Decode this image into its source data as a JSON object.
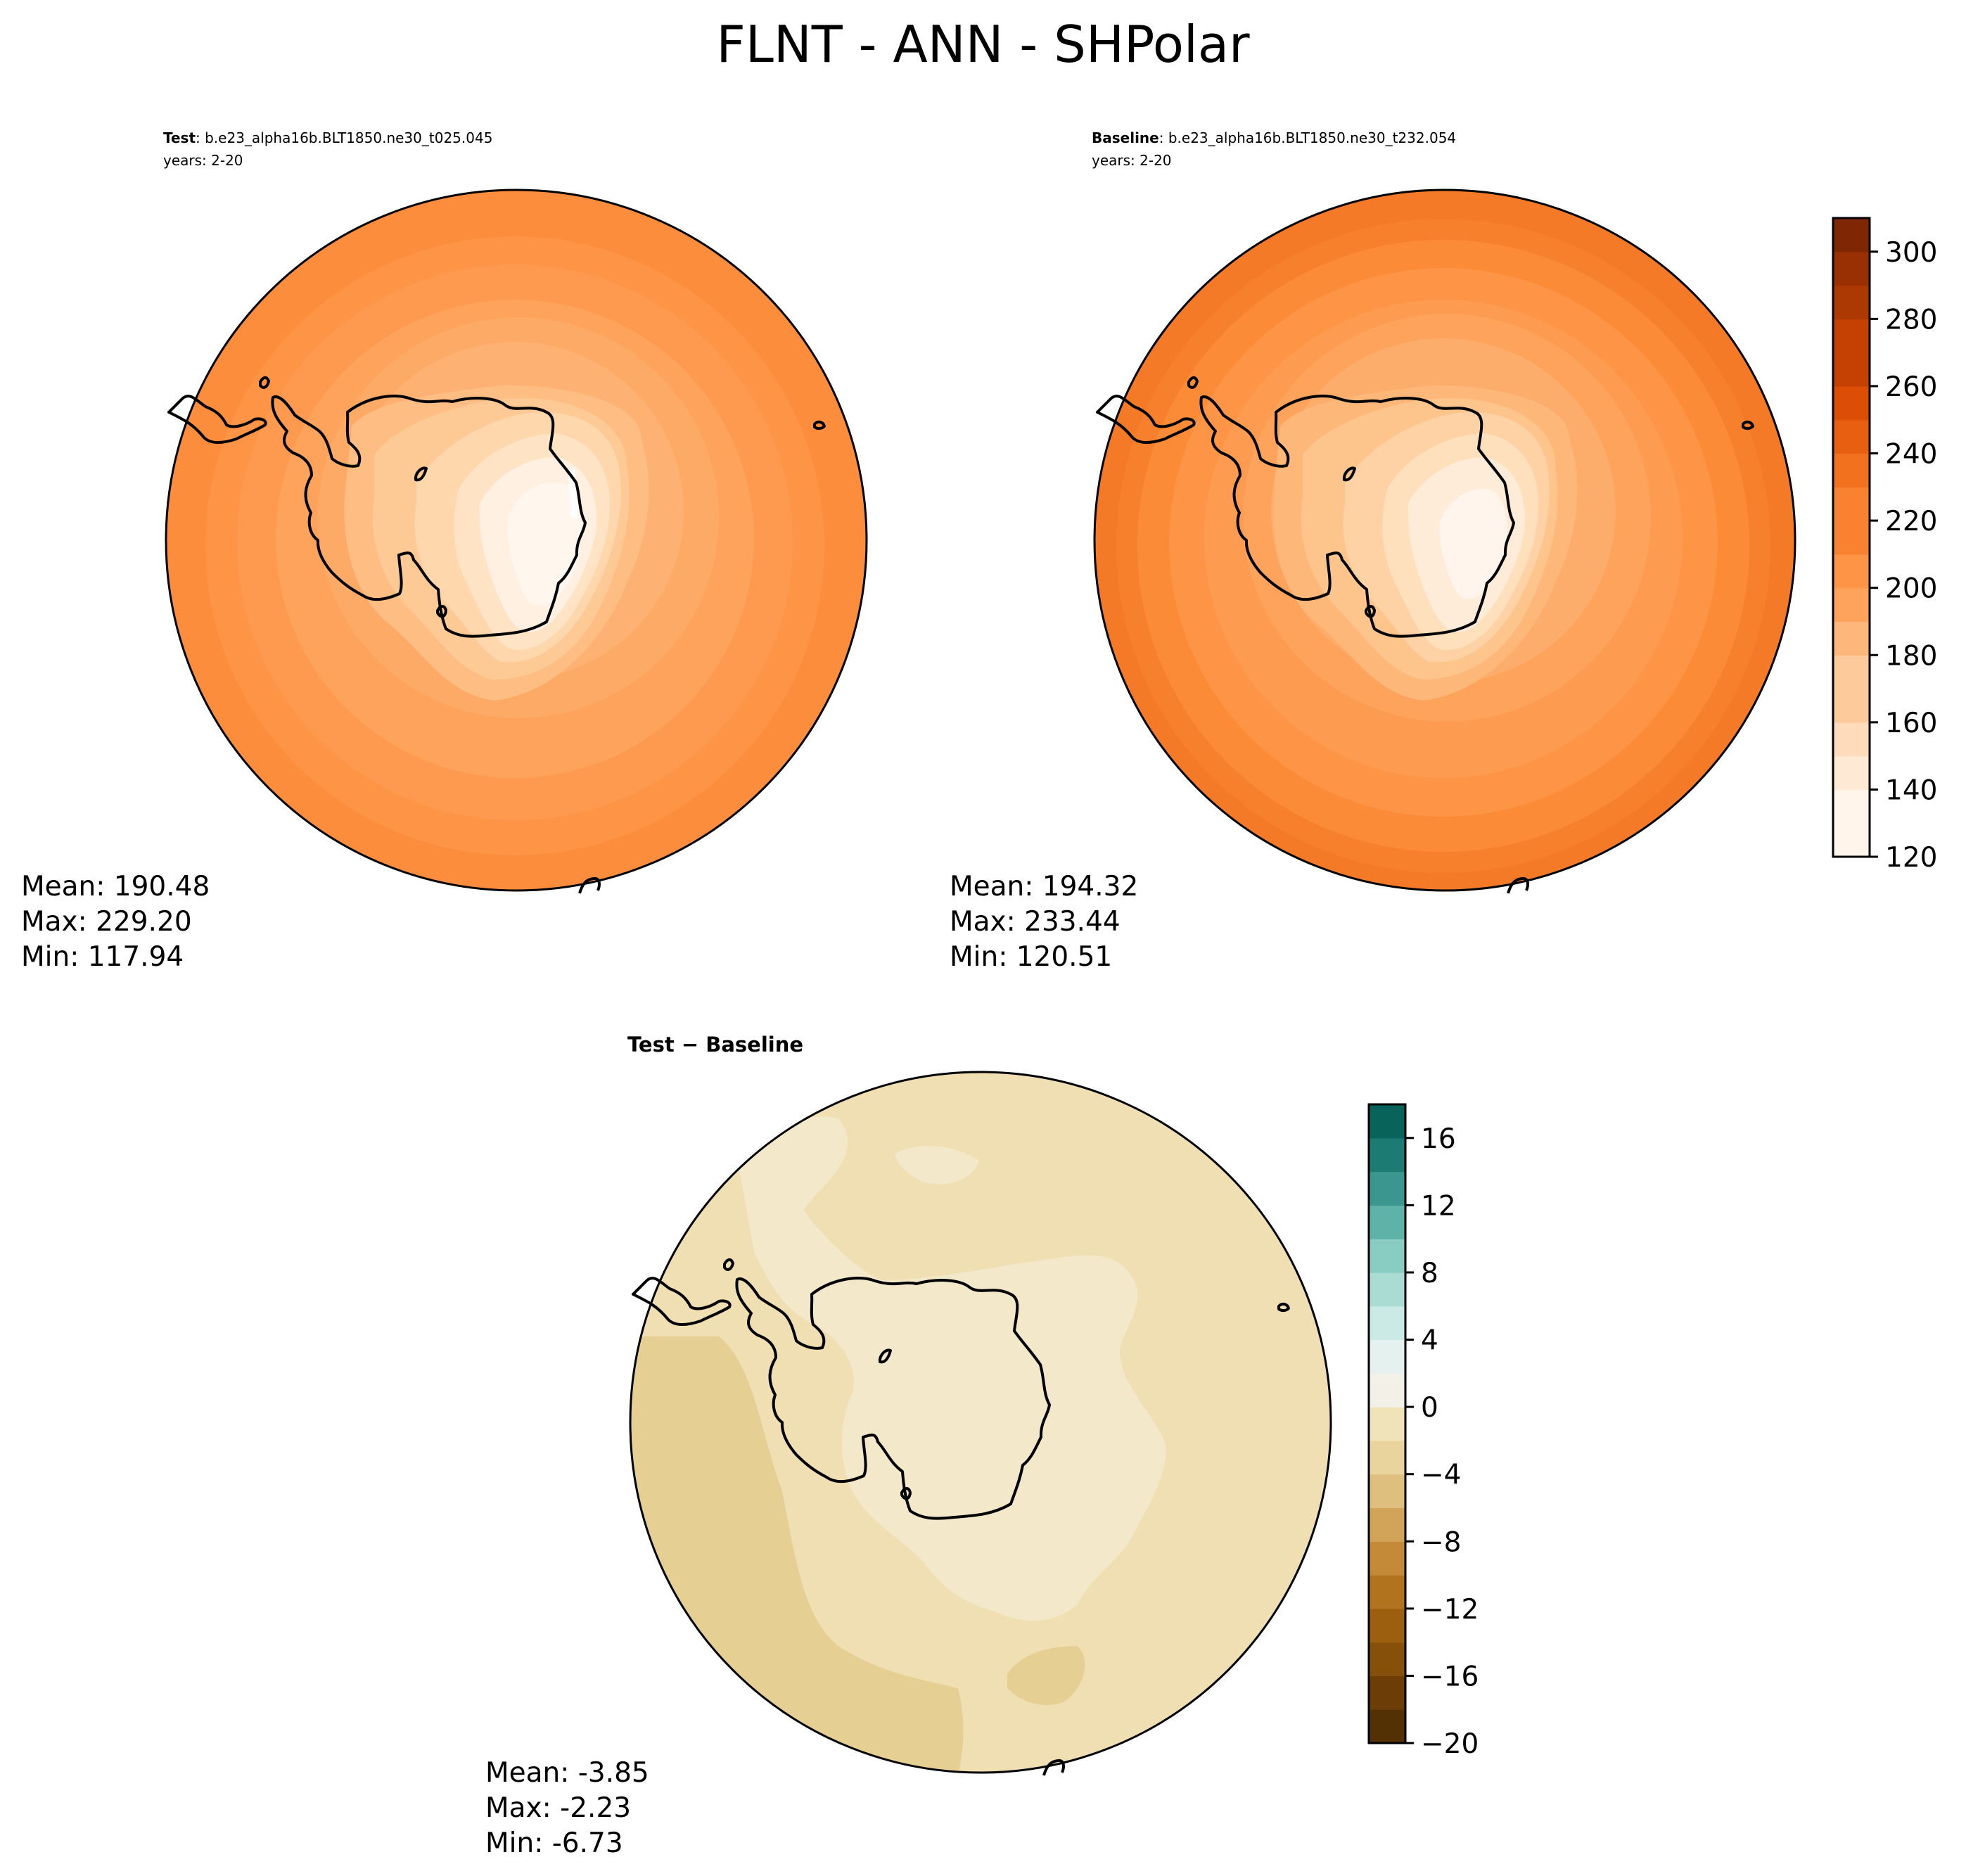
{
  "figure": {
    "title": "FLNT - ANN - SHPolar"
  },
  "panels": {
    "test": {
      "label": "Test",
      "case": ": b.e23_alpha16b.BLT1850.ne30_t025.045",
      "years": "years: 2-20",
      "mean": "Mean: 190.48",
      "max": "Max: 229.20",
      "min": "Min: 117.94"
    },
    "baseline": {
      "label": "Baseline",
      "case": ": b.e23_alpha16b.BLT1850.ne30_t232.054",
      "years": "years: 2-20",
      "mean": "Mean: 194.32",
      "max": "Max: 233.44",
      "min": "Min: 120.51"
    },
    "diff": {
      "label": "Test − Baseline",
      "mean": "Mean: -3.85",
      "max": "Max: -2.23",
      "min": "Min: -6.73"
    }
  },
  "colorbars": {
    "main": {
      "cmap": "Oranges",
      "range": [
        120,
        310
      ],
      "step": 10,
      "ticks": [
        "120",
        "140",
        "160",
        "180",
        "200",
        "220",
        "240",
        "260",
        "280",
        "300"
      ],
      "tick_values": [
        120,
        140,
        160,
        180,
        200,
        220,
        240,
        260,
        280,
        300
      ],
      "colors": [
        "#fff5eb",
        "#fee9d4",
        "#fedcbb",
        "#fdcb9b",
        "#fdb77a",
        "#fda35c",
        "#fd9446",
        "#f98230",
        "#f1711f",
        "#e85f12",
        "#dc4d06",
        "#c44103",
        "#ac3803",
        "#993003",
        "#7f2704"
      ]
    },
    "diff": {
      "cmap": "BrBG",
      "range": [
        -20,
        18
      ],
      "step": 2,
      "ticks": [
        "−20",
        "−16",
        "−12",
        "−8",
        "−4",
        "0",
        "4",
        "8",
        "12",
        "16"
      ],
      "tick_values": [
        -20,
        -16,
        -12,
        -8,
        -4,
        0,
        4,
        8,
        12,
        16
      ],
      "colors": [
        "#543005",
        "#6d3d07",
        "#86500b",
        "#9c5f10",
        "#b2731f",
        "#c48a37",
        "#d2a45a",
        "#dfbf7d",
        "#e8d49c",
        "#f1e3b9",
        "#f5ebd2",
        "#f2f0e7",
        "#e5f1ef",
        "#cceae5",
        "#abdcd4",
        "#89ccc1",
        "#5eb2a8",
        "#3a968e",
        "#1c7b72",
        "#08635a",
        "#003c30"
      ]
    }
  },
  "maps": {
    "test_rings": [
      "#fc8d3d",
      "#fd9446",
      "#fd9a4f",
      "#fda35c",
      "#fdaa66",
      "#fdb274",
      "#fdbd83",
      "#fdc994",
      "#fed7ad",
      "#fee3c4",
      "#fff0e1",
      "#fff6ee"
    ],
    "baseline_rings": [
      "#f7802d",
      "#fc8b38",
      "#fd9446",
      "#fd9c50",
      "#fda35c",
      "#fdad6b",
      "#fdb879",
      "#fdc48c",
      "#fed2a4",
      "#fee0bd",
      "#feecd8",
      "#fff5ec"
    ],
    "diff_regions": [
      "#e6cf93",
      "#efdfb2",
      "#f3e8c9"
    ]
  }
}
